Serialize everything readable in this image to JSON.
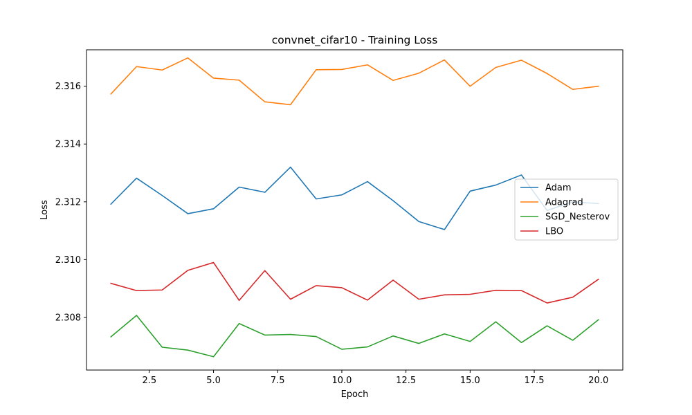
{
  "chart_data": {
    "type": "line",
    "title": "convnet_cifar10 - Training Loss",
    "xlabel": "Epoch",
    "ylabel": "Loss",
    "xlim": [
      0.05,
      20.95
    ],
    "ylim": [
      2.30618,
      2.31726
    ],
    "xticks": [
      2.5,
      5.0,
      7.5,
      10.0,
      12.5,
      15.0,
      17.5,
      20.0
    ],
    "yticks": [
      2.308,
      2.31,
      2.312,
      2.314,
      2.316
    ],
    "x": [
      1,
      2,
      3,
      4,
      5,
      6,
      7,
      8,
      9,
      10,
      11,
      12,
      13,
      14,
      15,
      16,
      17,
      18,
      19,
      20
    ],
    "grid": false,
    "legend_position": "center-right",
    "series": [
      {
        "name": "Adam",
        "color": "#1f77b4",
        "values": [
          2.31192,
          2.31282,
          2.31222,
          2.31159,
          2.31176,
          2.31251,
          2.31233,
          2.3132,
          2.3121,
          2.31224,
          2.3127,
          2.31204,
          2.31132,
          2.31104,
          2.31237,
          2.31258,
          2.31293,
          2.3117,
          2.312,
          2.31194
        ]
      },
      {
        "name": "Adagrad",
        "color": "#ff7f0e",
        "values": [
          2.31573,
          2.31668,
          2.31656,
          2.31698,
          2.31628,
          2.31621,
          2.31546,
          2.31536,
          2.31657,
          2.31658,
          2.31674,
          2.3162,
          2.31645,
          2.31691,
          2.316,
          2.31665,
          2.3169,
          2.31644,
          2.31589,
          2.316
        ]
      },
      {
        "name": "SGD_Nesterov",
        "color": "#2ca02c",
        "values": [
          2.30733,
          2.30807,
          2.30697,
          2.30687,
          2.30664,
          2.30779,
          2.30739,
          2.30741,
          2.30734,
          2.3069,
          2.30698,
          2.30736,
          2.3071,
          2.30743,
          2.30717,
          2.30785,
          2.30713,
          2.30771,
          2.30721,
          2.30792
        ]
      },
      {
        "name": "LBO",
        "color": "#d62728",
        "values": [
          2.30918,
          2.30893,
          2.30895,
          2.30963,
          2.3099,
          2.30859,
          2.30962,
          2.30863,
          2.3091,
          2.30903,
          2.3086,
          2.30929,
          2.30863,
          2.30878,
          2.3088,
          2.30894,
          2.30893,
          2.3085,
          2.3087,
          2.30932
        ]
      }
    ]
  }
}
